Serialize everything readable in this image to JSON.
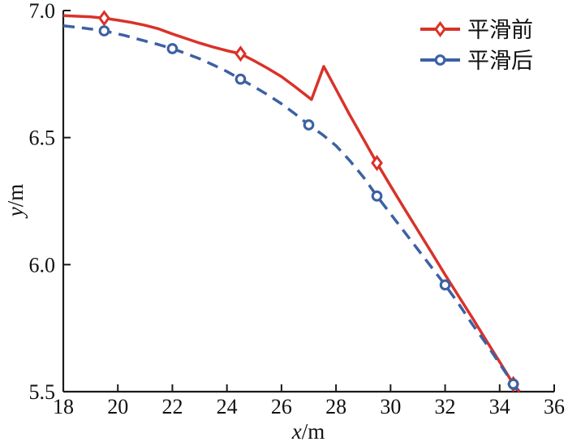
{
  "figure_title": "",
  "chart_data": {
    "type": "line",
    "title": "",
    "xlabel_var": "x",
    "xlabel_unit": "/m",
    "ylabel_var": "y",
    "ylabel_unit": "/m",
    "xlim": [
      18,
      36
    ],
    "ylim": [
      5.5,
      7.0
    ],
    "grid": false,
    "legend_position": "top-right",
    "x_ticks": [
      {
        "label": "18",
        "value": 18
      },
      {
        "label": "20",
        "value": 20
      },
      {
        "label": "22",
        "value": 22
      },
      {
        "label": "24",
        "value": 24
      },
      {
        "label": "26",
        "value": 26
      },
      {
        "label": "28",
        "value": 28
      },
      {
        "label": "30",
        "value": 30
      },
      {
        "label": "32",
        "value": 32
      },
      {
        "label": "34",
        "value": 34
      },
      {
        "label": "36",
        "value": 36
      }
    ],
    "y_ticks": [
      {
        "label": "7.0",
        "value": 7.0
      },
      {
        "label": "6.5",
        "value": 6.5
      },
      {
        "label": "6.0",
        "value": 6.0
      },
      {
        "label": "5.5",
        "value": 5.5
      }
    ],
    "series": [
      {
        "name": "平滑前",
        "color": "#d93229",
        "line_style": "solid",
        "marker": "diamond",
        "marker_points": [
          [
            19.5,
            6.97
          ],
          [
            24.5,
            6.83
          ],
          [
            29.5,
            6.4
          ],
          [
            34.5,
            5.53
          ]
        ],
        "line_points": [
          [
            18,
            6.98
          ],
          [
            19,
            6.975
          ],
          [
            19.5,
            6.97
          ],
          [
            20,
            6.962
          ],
          [
            20.5,
            6.953
          ],
          [
            21,
            6.942
          ],
          [
            21.5,
            6.928
          ],
          [
            22,
            6.908
          ],
          [
            22.5,
            6.89
          ],
          [
            23,
            6.872
          ],
          [
            23.5,
            6.856
          ],
          [
            24,
            6.842
          ],
          [
            24.5,
            6.83
          ],
          [
            25,
            6.802
          ],
          [
            25.5,
            6.772
          ],
          [
            26,
            6.74
          ],
          [
            26.5,
            6.7
          ],
          [
            27.1,
            6.65
          ],
          [
            27.55,
            6.78
          ],
          [
            28,
            6.69
          ],
          [
            28.5,
            6.59
          ],
          [
            29,
            6.495
          ],
          [
            29.5,
            6.4
          ],
          [
            30,
            6.31
          ],
          [
            30.5,
            6.222
          ],
          [
            31,
            6.135
          ],
          [
            31.5,
            6.048
          ],
          [
            32,
            5.96
          ],
          [
            32.5,
            5.875
          ],
          [
            33,
            5.79
          ],
          [
            33.5,
            5.703
          ],
          [
            34,
            5.617
          ],
          [
            34.5,
            5.53
          ],
          [
            34.73,
            5.5
          ]
        ]
      },
      {
        "name": "平滑后",
        "color": "#3c61a4",
        "line_style": "dashed",
        "marker": "circle",
        "marker_points": [
          [
            19.5,
            6.92
          ],
          [
            22,
            6.85
          ],
          [
            24.5,
            6.73
          ],
          [
            27,
            6.55
          ],
          [
            29.5,
            6.27
          ],
          [
            32,
            5.92
          ],
          [
            34.5,
            5.53
          ]
        ],
        "line_points": [
          [
            18,
            6.94
          ],
          [
            18.75,
            6.931
          ],
          [
            19.5,
            6.92
          ],
          [
            20.25,
            6.902
          ],
          [
            21,
            6.88
          ],
          [
            21.5,
            6.866
          ],
          [
            22,
            6.85
          ],
          [
            22.5,
            6.831
          ],
          [
            23,
            6.81
          ],
          [
            23.5,
            6.786
          ],
          [
            24,
            6.76
          ],
          [
            24.5,
            6.73
          ],
          [
            25,
            6.7
          ],
          [
            25.5,
            6.668
          ],
          [
            26,
            6.633
          ],
          [
            26.5,
            6.593
          ],
          [
            27,
            6.55
          ],
          [
            27.5,
            6.512
          ],
          [
            28,
            6.468
          ],
          [
            28.5,
            6.41
          ],
          [
            29,
            6.345
          ],
          [
            29.5,
            6.27
          ],
          [
            30,
            6.2
          ],
          [
            30.5,
            6.13
          ],
          [
            31,
            6.06
          ],
          [
            31.5,
            5.99
          ],
          [
            32,
            5.92
          ],
          [
            32.5,
            5.845
          ],
          [
            33,
            5.765
          ],
          [
            33.5,
            5.69
          ],
          [
            34,
            5.61
          ],
          [
            34.5,
            5.53
          ],
          [
            34.65,
            5.505
          ]
        ]
      }
    ],
    "colors": {
      "axis": "#1a1a1a",
      "background": "#ffffff",
      "presmooth_red": "#d93229",
      "postsmooth_blue": "#3c61a4"
    }
  }
}
